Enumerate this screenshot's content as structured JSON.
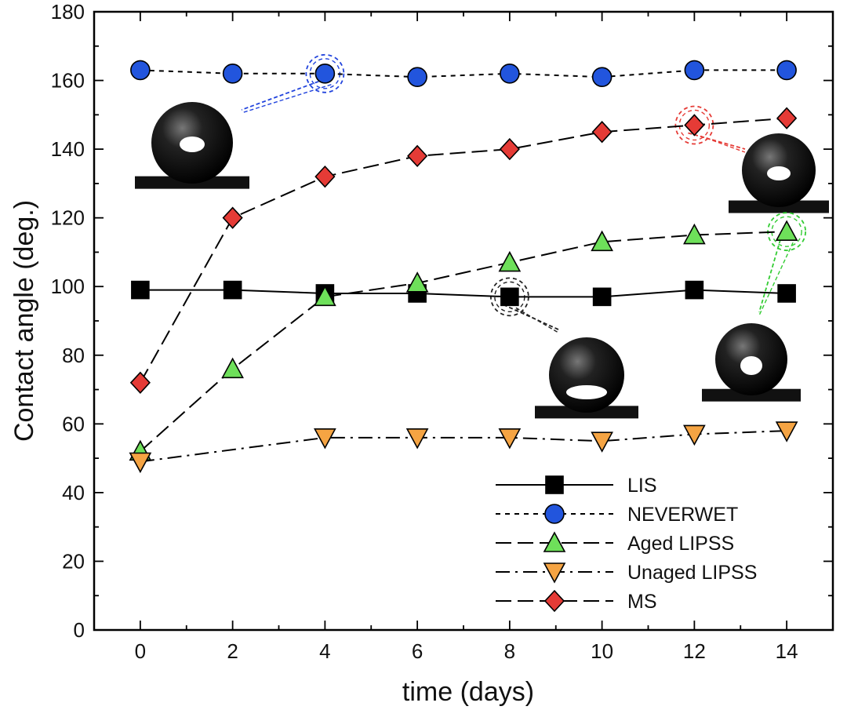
{
  "chart_data": {
    "type": "line",
    "xlabel": "time (days)",
    "ylabel": "Contact angle (deg.)",
    "xlim": [
      -1,
      15
    ],
    "ylim": [
      0,
      180
    ],
    "x_ticks": [
      0,
      2,
      4,
      6,
      8,
      10,
      12,
      14
    ],
    "y_ticks": [
      0,
      20,
      40,
      60,
      80,
      100,
      120,
      140,
      160,
      180
    ],
    "grid": false,
    "legend_position": "bottom-right",
    "series": [
      {
        "name": "LIS",
        "marker": "square",
        "line": "solid",
        "color": "#000000",
        "x": [
          0,
          2,
          4,
          6,
          8,
          10,
          12,
          14
        ],
        "y": [
          99,
          99,
          98,
          98,
          97,
          97,
          99,
          98
        ]
      },
      {
        "name": "NEVERWET",
        "marker": "circle",
        "line": "short-dash",
        "color": "#2255dd",
        "x": [
          0,
          2,
          4,
          6,
          8,
          10,
          12,
          14
        ],
        "y": [
          163,
          162,
          162,
          161,
          162,
          161,
          163,
          163
        ]
      },
      {
        "name": "Aged LIPSS",
        "marker": "triangle-up",
        "line": "long-dash",
        "color": "#6ee05a",
        "x": [
          0,
          2,
          4,
          6,
          8,
          10,
          12,
          14
        ],
        "y": [
          52,
          76,
          97,
          101,
          107,
          113,
          115,
          116
        ]
      },
      {
        "name": "Unaged LIPSS",
        "marker": "triangle-down",
        "line": "dash-dot",
        "color": "#f5a443",
        "x": [
          0,
          4,
          6,
          8,
          10,
          12,
          14
        ],
        "y": [
          49,
          56,
          56,
          56,
          55,
          57,
          58
        ]
      },
      {
        "name": "MS",
        "marker": "diamond",
        "line": "long-dash",
        "color": "#e53b36",
        "x": [
          0,
          2,
          4,
          6,
          8,
          10,
          12,
          14
        ],
        "y": [
          72,
          120,
          132,
          138,
          140,
          145,
          147,
          149
        ]
      }
    ],
    "insets": [
      {
        "name": "droplet-neverwet",
        "target_series": "NEVERWET",
        "target_x": 4,
        "callout_color": "#2244dd"
      },
      {
        "name": "droplet-ms",
        "target_series": "MS",
        "target_x": 12,
        "callout_color": "#e53b36"
      },
      {
        "name": "droplet-lis",
        "target_series": "LIS",
        "target_x": 8,
        "callout_color": "#222222"
      },
      {
        "name": "droplet-aged-lipss",
        "target_series": "Aged LIPSS",
        "target_x": 14,
        "callout_color": "#33cc33"
      }
    ]
  }
}
